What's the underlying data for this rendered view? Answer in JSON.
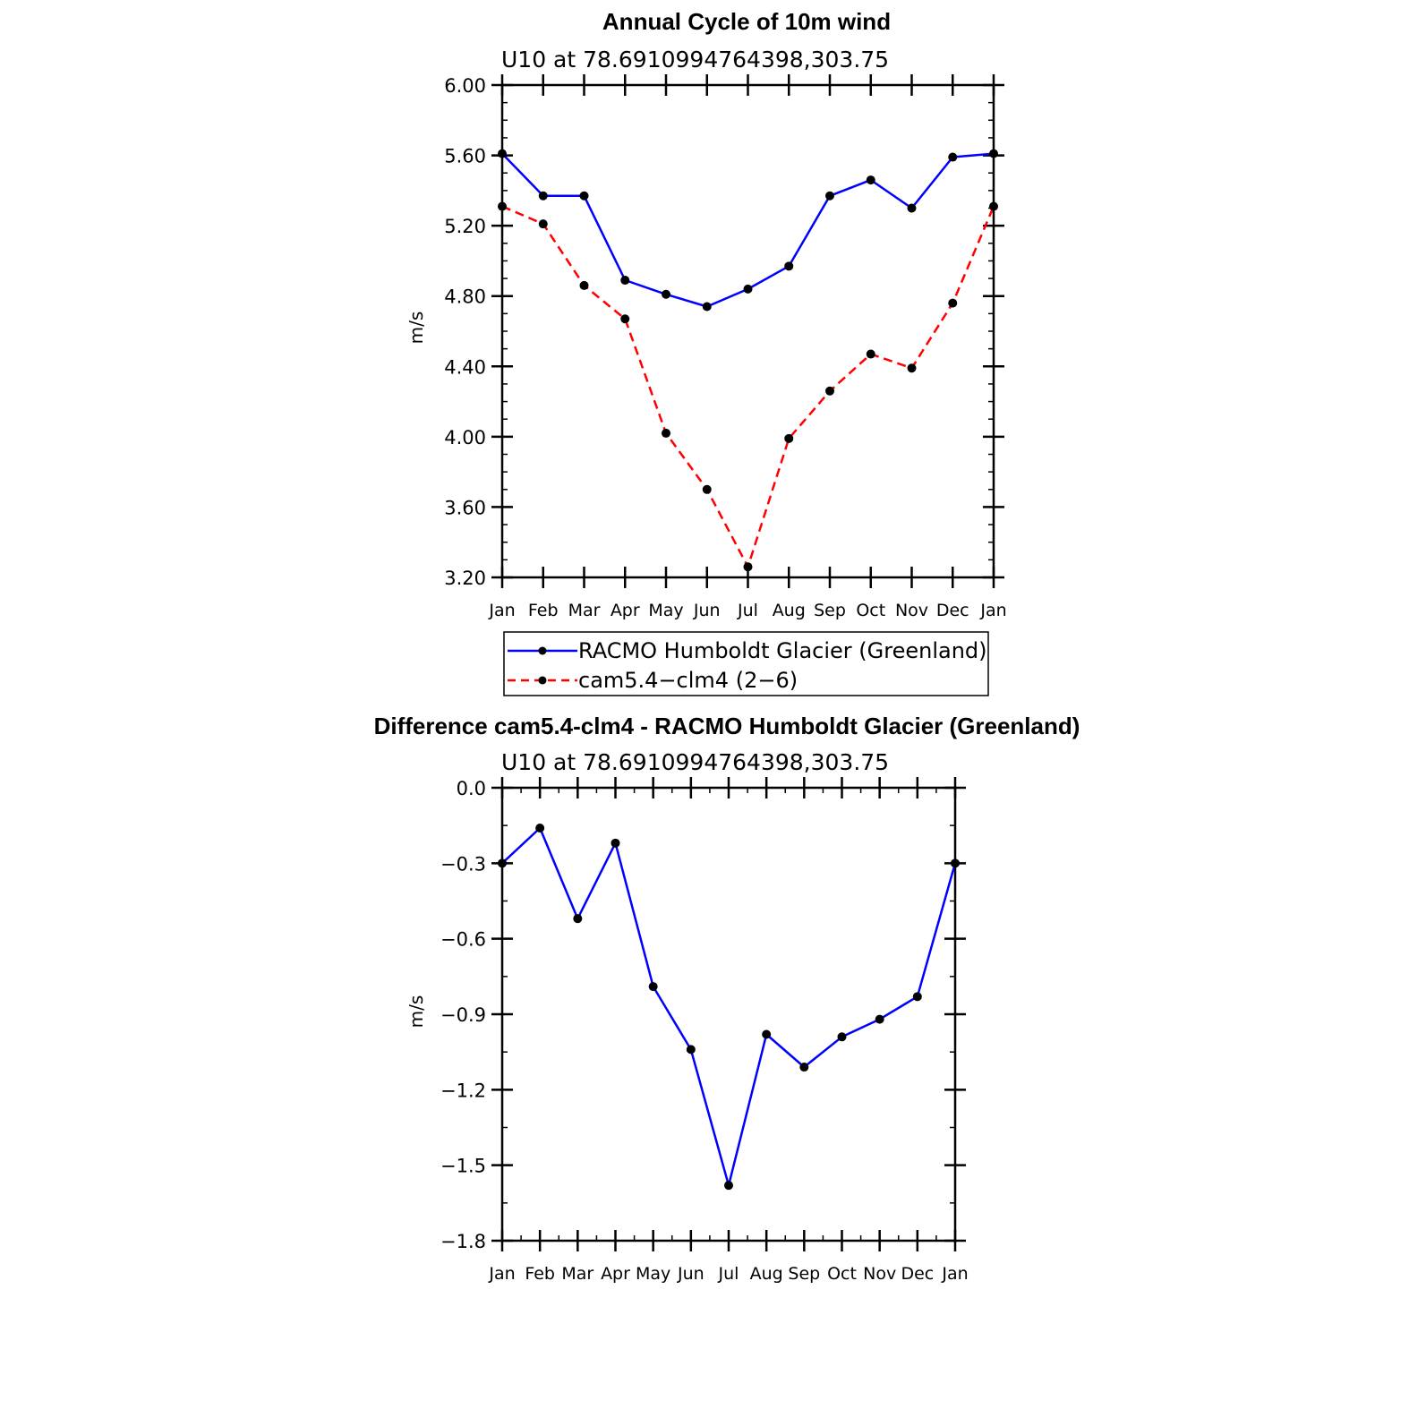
{
  "chart_data": [
    {
      "type": "line",
      "title": "Annual Cycle of 10m wind",
      "subtitle": "U10  at  78.6910994764398,303.75",
      "xlabel": "",
      "ylabel": "m/s",
      "categories": [
        "Jan",
        "Feb",
        "Mar",
        "Apr",
        "May",
        "Jun",
        "Jul",
        "Aug",
        "Sep",
        "Oct",
        "Nov",
        "Dec",
        "Jan"
      ],
      "ylim": [
        3.2,
        6.0
      ],
      "yticks": [
        "3.20",
        "3.60",
        "4.00",
        "4.40",
        "4.80",
        "5.20",
        "5.60",
        "6.00"
      ],
      "ytick_values": [
        3.2,
        3.6,
        4.0,
        4.4,
        4.8,
        5.2,
        5.6,
        6.0
      ],
      "legend_position": "bottom",
      "series": [
        {
          "name": "RACMO Humboldt Glacier (Greenland)",
          "color": "#0000ff",
          "style": "solid",
          "values": [
            5.61,
            5.37,
            5.37,
            4.89,
            4.81,
            4.74,
            4.84,
            4.97,
            5.37,
            5.46,
            5.3,
            5.59,
            5.61
          ]
        },
        {
          "name": "cam5.4−clm4 (2−6)",
          "color": "#ff0000",
          "style": "dashed",
          "values": [
            5.31,
            5.21,
            4.86,
            4.67,
            4.02,
            3.7,
            3.26,
            3.99,
            4.26,
            4.47,
            4.39,
            4.76,
            5.31
          ]
        }
      ]
    },
    {
      "type": "line",
      "title": "Difference cam5.4-clm4 - RACMO Humboldt Glacier (Greenland)",
      "subtitle": "U10  at  78.6910994764398,303.75",
      "xlabel": "",
      "ylabel": "m/s",
      "categories": [
        "Jan",
        "Feb",
        "Mar",
        "Apr",
        "May",
        "Jun",
        "Jul",
        "Aug",
        "Sep",
        "Oct",
        "Nov",
        "Dec",
        "Jan"
      ],
      "ylim": [
        -1.8,
        0.0
      ],
      "yticks": [
        "0.0",
        "−0.3",
        "−0.6",
        "−0.9",
        "−1.2",
        "−1.5",
        "−1.8"
      ],
      "ytick_values": [
        0.0,
        -0.3,
        -0.6,
        -0.9,
        -1.2,
        -1.5,
        -1.8
      ],
      "series": [
        {
          "name": "Difference",
          "color": "#0000ff",
          "style": "solid",
          "values": [
            -0.3,
            -0.16,
            -0.52,
            -0.22,
            -0.79,
            -1.04,
            -1.58,
            -0.98,
            -1.11,
            -0.99,
            -0.92,
            -0.83,
            -0.3
          ]
        }
      ]
    }
  ]
}
